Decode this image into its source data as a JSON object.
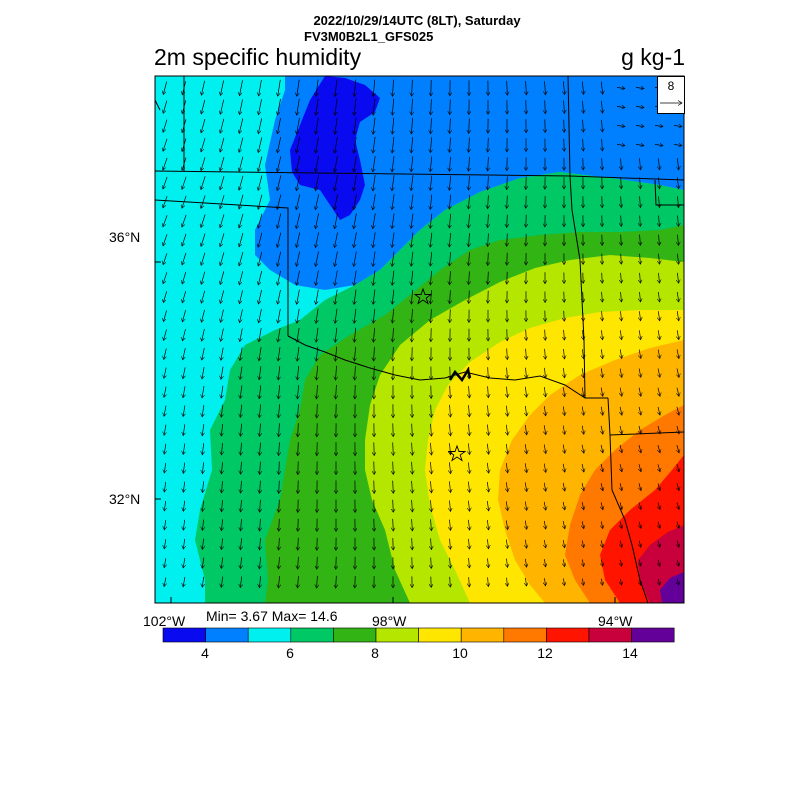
{
  "header": {
    "title": "2022/10/29/14UTC (8LT), Saturday",
    "subtitle": "FV3M0B2L1_GFS025"
  },
  "variable": {
    "name": "2m specific humidity",
    "units": "g kg-1"
  },
  "reference_vector": {
    "label": "8"
  },
  "axes": {
    "lat_labels": [
      "36°N",
      "32°N"
    ],
    "lon_labels": [
      "102°W",
      "98°W",
      "94°W"
    ]
  },
  "stats": {
    "text": "Min= 3.67 Max= 14.6"
  },
  "colorbar": {
    "colors": [
      "#0a0af0",
      "#0080ff",
      "#00f0f0",
      "#00c864",
      "#32b414",
      "#b4e600",
      "#ffe600",
      "#ffb400",
      "#ff7800",
      "#ff1400",
      "#c8003c",
      "#64009a"
    ],
    "labels": [
      "4",
      "6",
      "8",
      "10",
      "12",
      "14"
    ]
  },
  "colors": {
    "deep_blue": "#0a0af0",
    "blue": "#0080ff",
    "cyan": "#00f0f0",
    "teal_green": "#00c864",
    "green": "#32b414",
    "yellow_green": "#b4e600",
    "yellow": "#ffe600",
    "orange_yellow": "#ffb400",
    "orange": "#ff7800",
    "red": "#ff1400",
    "crimson": "#c8003c",
    "purple": "#64009a"
  }
}
